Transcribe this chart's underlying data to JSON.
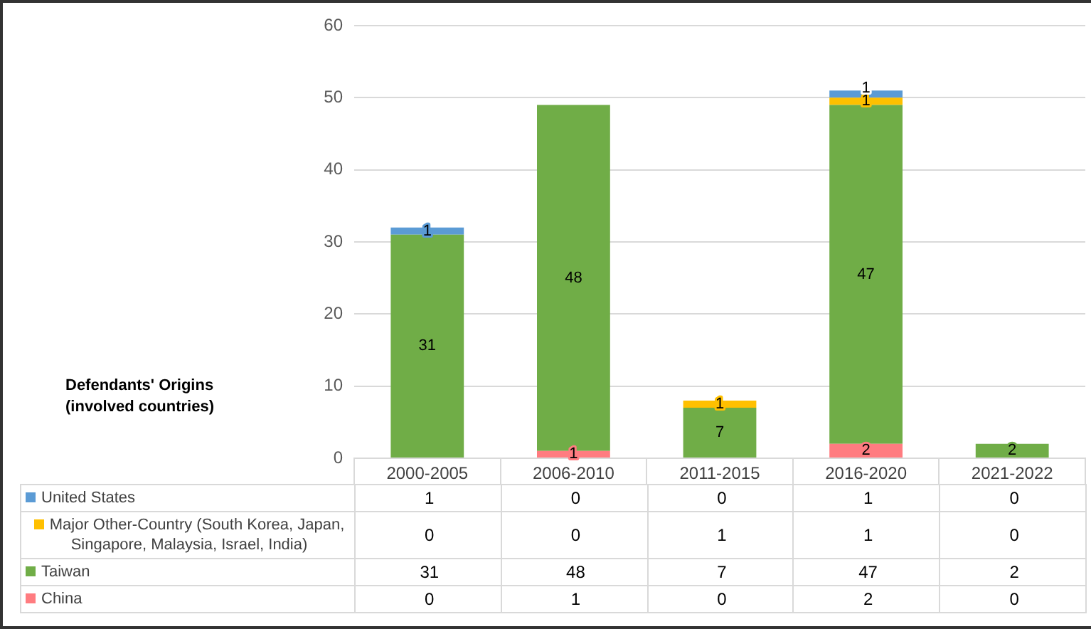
{
  "chart_data": {
    "type": "bar",
    "stacked": true,
    "legend_title": "Defendants' Origins (involved countries)",
    "categories": [
      "2000-2005",
      "2006-2010",
      "2011-2015",
      "2016-2020",
      "2021-2022"
    ],
    "series": [
      {
        "name": "China",
        "color": "#ff7c80",
        "values": [
          0,
          1,
          0,
          2,
          0
        ]
      },
      {
        "name": "Taiwan",
        "color": "#70ad47",
        "values": [
          31,
          48,
          7,
          47,
          2
        ]
      },
      {
        "name": "Major Other-Country (South Korea, Japan, Singapore, Malaysia, Israel, India)",
        "color": "#ffc000",
        "values": [
          0,
          0,
          1,
          1,
          0
        ]
      },
      {
        "name": "United States",
        "color": "#5b9bd5",
        "values": [
          1,
          0,
          0,
          1,
          0
        ]
      }
    ],
    "annotations": [
      "31",
      {
        "text": "1",
        "x": "2000-2005",
        "y": 32
      },
      {
        "text": "1",
        "x": "2006-2010",
        "y": 1
      },
      "48",
      {
        "text": "7",
        "x": "2011-2015",
        "y": 7
      },
      {
        "text": "1",
        "x": "2011-2015",
        "y": 8
      },
      {
        "text": "2",
        "x": "2016-2020",
        "y": 2
      },
      "47",
      {
        "text": "1",
        "x": "2016-2020",
        "y": 50
      },
      {
        "text": "1",
        "x": "2016-2020",
        "y": 51
      },
      {
        "text": "2",
        "x": "2021-2022",
        "y": 2
      }
    ],
    "ylim": [
      0,
      60
    ],
    "yticks": [
      0,
      10,
      20,
      30,
      40,
      50,
      60
    ],
    "grid": "y",
    "legend": "bottom",
    "data_labels": true
  }
}
